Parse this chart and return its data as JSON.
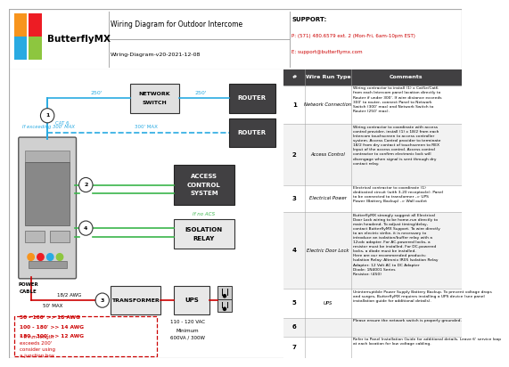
{
  "title": "Wiring Diagram for Outdoor Intercome",
  "subtitle": "Wiring-Diagram-v20-2021-12-08",
  "support_title": "SUPPORT:",
  "support_phone": "P: (571) 480.6579 ext. 2 (Mon-Fri, 6am-10pm EST)",
  "support_email": "E: support@butterflymx.com",
  "logo_text": "ButterflyMX",
  "bg_color": "#ffffff",
  "wire_blue": "#29aae2",
  "wire_green": "#39b54a",
  "wire_red": "#cc0000",
  "text_red": "#cc0000",
  "text_cyan": "#29aae2",
  "box_dark": "#414042",
  "table_header_bg": "#414042",
  "logo_colors": [
    [
      "#f7941d",
      "#ed1c24"
    ],
    [
      "#29aae2",
      "#8dc63f"
    ]
  ],
  "table_rows": [
    {
      "num": "1",
      "type": "Network Connection",
      "comment": "Wiring contractor to install (1) x Cat5e/Cat6\nfrom each Intercom panel location directly to\nRouter if under 300'. If wire distance exceeds\n300' to router, connect Panel to Network\nSwitch (300' max) and Network Switch to\nRouter (250' max)."
    },
    {
      "num": "2",
      "type": "Access Control",
      "comment": "Wiring contractor to coordinate with access\ncontrol provider, install (1) x 18/2 from each\nIntercom touchscreen to access controller\nsystem. Access Control provider to terminate\n18/2 from dry contact of touchscreen to REX\nInput of the access control. Access control\ncontractor to confirm electronic lock will\ndisengage when signal is sent through dry\ncontact relay."
    },
    {
      "num": "3",
      "type": "Electrical Power",
      "comment": "Electrical contractor to coordinate (1)\ndedicated circuit (with 3-20 receptacle). Panel\nto be connected to transformer -> UPS\nPower (Battery Backup) -> Wall outlet"
    },
    {
      "num": "4",
      "type": "Electric Door Lock",
      "comment": "ButterflyMX strongly suggest all Electrical\nDoor Lock wiring to be home-run directly to\nmain headend. To adjust timing/delay,\ncontact ButterflyMX Support. To wire directly\nto an electric strike, it is necessary to\nintroduce an isolation/buffer relay with a\n12vdc adapter. For AC-powered locks, a\nresistor must be installed. For DC-powered\nlocks, a diode must be installed.\nHere are our recommended products:\nIsolation Relay: Altronix IR05 Isolation Relay\nAdapter: 12 Volt AC to DC Adapter\nDiode: 1N4001 Series\nResistor: (450)"
    },
    {
      "num": "5",
      "type": "UPS",
      "comment": "Uninterruptible Power Supply Battery Backup. To prevent voltage drops\nand surges, ButterflyMX requires installing a UPS device (see panel\ninstallation guide for additional details)."
    },
    {
      "num": "6",
      "type": "",
      "comment": "Please ensure the network switch is properly grounded."
    },
    {
      "num": "7",
      "type": "",
      "comment": "Refer to Panel Installation Guide for additional details. Leave 6' service loop\nat each location for low voltage cabling."
    }
  ]
}
